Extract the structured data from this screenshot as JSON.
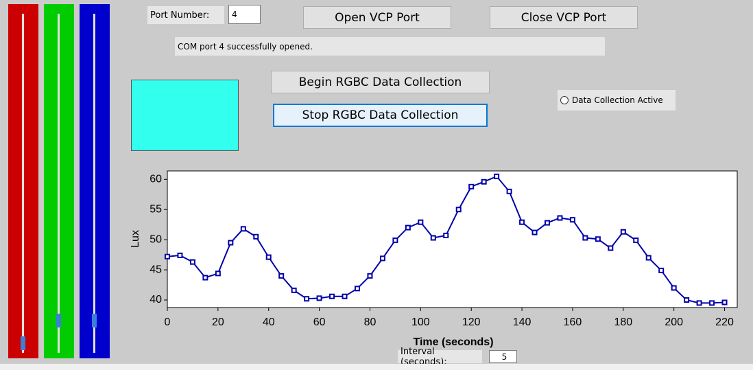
{
  "ui": {
    "port_label": "Port Number:",
    "port_value": "4",
    "open_button": "Open VCP Port",
    "close_button": "Close VCP Port",
    "status": "COM port 4 successfully opened.",
    "begin_button": "Begin RGBC Data Collection",
    "stop_button": "Stop RGBC Data Collection",
    "active_radio": "Data Collection Active",
    "interval_label": "Interval (seconds):",
    "interval_value": "5"
  },
  "chart_data": {
    "type": "line",
    "xlabel": "Time (seconds)",
    "ylabel": "Lux",
    "x": [
      0,
      5,
      10,
      15,
      20,
      25,
      30,
      35,
      40,
      45,
      50,
      55,
      60,
      65,
      70,
      75,
      80,
      85,
      90,
      95,
      100,
      105,
      110,
      115,
      120,
      125,
      130,
      135,
      140,
      145,
      150,
      155,
      160,
      165,
      170,
      175,
      180,
      185,
      190,
      195,
      200,
      205,
      210,
      215,
      220
    ],
    "series": [
      {
        "color": "#0000aa",
        "values": [
          47.2,
          47.4,
          46.3,
          43.7,
          44.4,
          49.5,
          51.8,
          50.5,
          47.1,
          44.0,
          41.6,
          40.2,
          40.3,
          40.6,
          40.6,
          41.9,
          44.0,
          46.9,
          49.9,
          52.0,
          52.9,
          50.3,
          50.7,
          55.0,
          58.8,
          59.6,
          60.5,
          58.0,
          52.9,
          51.2,
          52.8,
          53.6,
          53.3,
          50.3,
          50.1,
          48.6,
          51.3,
          49.9,
          47.0,
          44.9,
          42.0,
          40.0,
          39.5,
          39.5,
          39.6
        ]
      }
    ],
    "xlim": [
      0,
      225
    ],
    "ylim": [
      38.75,
      61.4
    ],
    "xticks": [
      0,
      20,
      40,
      60,
      80,
      100,
      120,
      140,
      160,
      180,
      200,
      220
    ],
    "yticks": [
      40,
      45,
      50,
      55,
      60
    ]
  }
}
